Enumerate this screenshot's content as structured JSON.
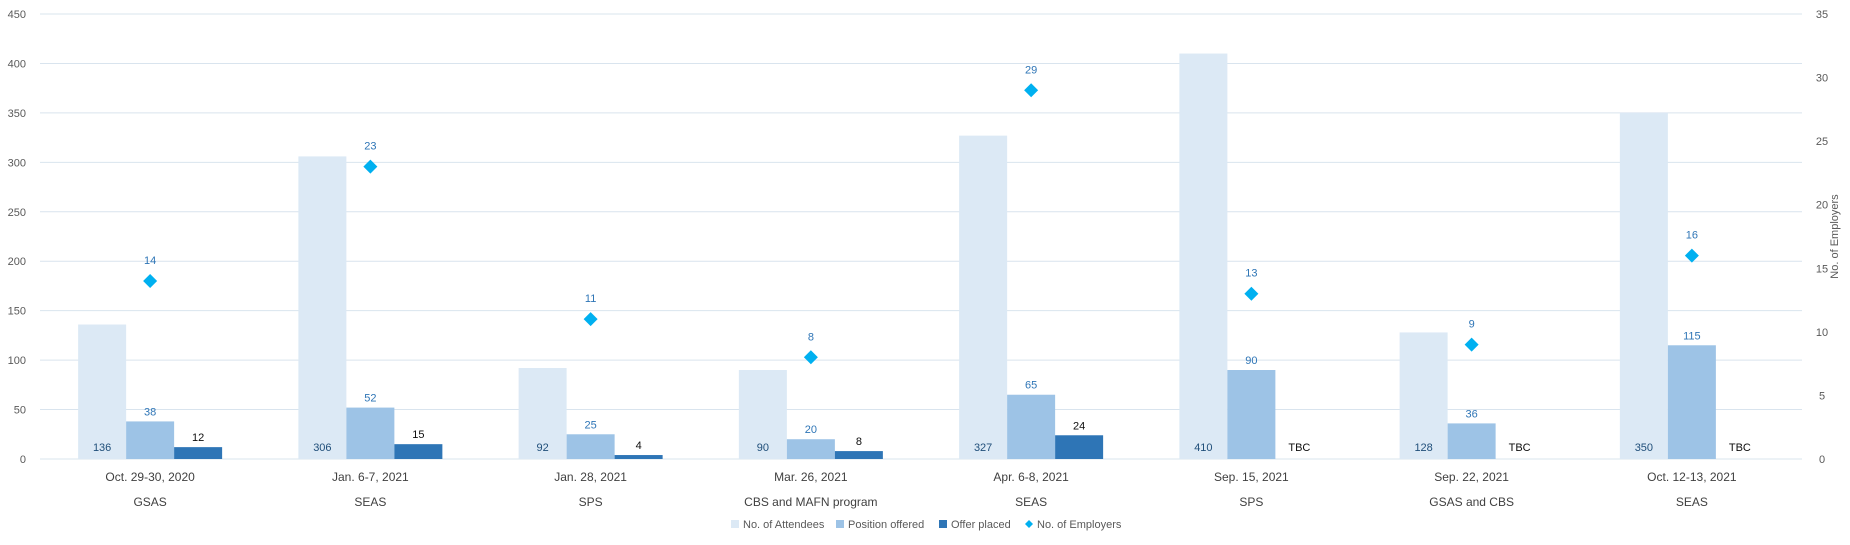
{
  "chart_data": {
    "type": "bar",
    "categories": [
      {
        "date": "Oct. 29-30, 2020",
        "school": "GSAS"
      },
      {
        "date": "Jan. 6-7, 2021",
        "school": "SEAS"
      },
      {
        "date": "Jan. 28, 2021",
        "school": "SPS"
      },
      {
        "date": "Mar. 26, 2021",
        "school": "CBS and MAFN program"
      },
      {
        "date": "Apr. 6-8, 2021",
        "school": "SEAS"
      },
      {
        "date": "Sep. 15, 2021",
        "school": "SPS"
      },
      {
        "date": "Sep. 22, 2021",
        "school": "GSAS and CBS"
      },
      {
        "date": "Oct. 12-13, 2021",
        "school": "SEAS"
      }
    ],
    "series": [
      {
        "name": "No. of Attendees",
        "type": "bar",
        "axis": "left",
        "color": "#dce9f5",
        "label_color": "#1f4e79",
        "values": [
          136,
          306,
          92,
          90,
          327,
          410,
          128,
          350
        ],
        "labels": [
          "136",
          "306",
          "92",
          "90",
          "327",
          "410",
          "128",
          "350"
        ]
      },
      {
        "name": "Position offered",
        "type": "bar",
        "axis": "left",
        "color": "#9dc3e6",
        "label_color": "#2e75b6",
        "values": [
          38,
          52,
          25,
          20,
          65,
          90,
          36,
          115
        ],
        "labels": [
          "38",
          "52",
          "25",
          "20",
          "65",
          "90",
          "36",
          "115"
        ]
      },
      {
        "name": "Offer placed",
        "type": "bar",
        "axis": "left",
        "color": "#2e75b6",
        "label_color": "#0d0d0d",
        "values": [
          12,
          15,
          4,
          8,
          24,
          null,
          null,
          null
        ],
        "labels": [
          "12",
          "15",
          "4",
          "8",
          "24",
          "TBC",
          "TBC",
          "TBC"
        ]
      },
      {
        "name": "No. of Employers",
        "type": "scatter",
        "marker": "diamond",
        "axis": "right",
        "color": "#00b0f0",
        "label_color": "#2e75b6",
        "values": [
          14,
          23,
          11,
          8,
          29,
          13,
          9,
          16
        ],
        "labels": [
          "14",
          "23",
          "11",
          "8",
          "29",
          "13",
          "9",
          "16"
        ]
      }
    ],
    "y_left": {
      "min": 0,
      "max": 450,
      "ticks": [
        "0",
        "50",
        "100",
        "150",
        "200",
        "250",
        "300",
        "350",
        "400",
        "450"
      ]
    },
    "y_right": {
      "min": 0,
      "max": 35,
      "ticks": [
        "0",
        "5",
        "10",
        "15",
        "20",
        "25",
        "30",
        "35"
      ],
      "label": "No. of Employers"
    },
    "grid": true,
    "legend": "bottom-center"
  }
}
